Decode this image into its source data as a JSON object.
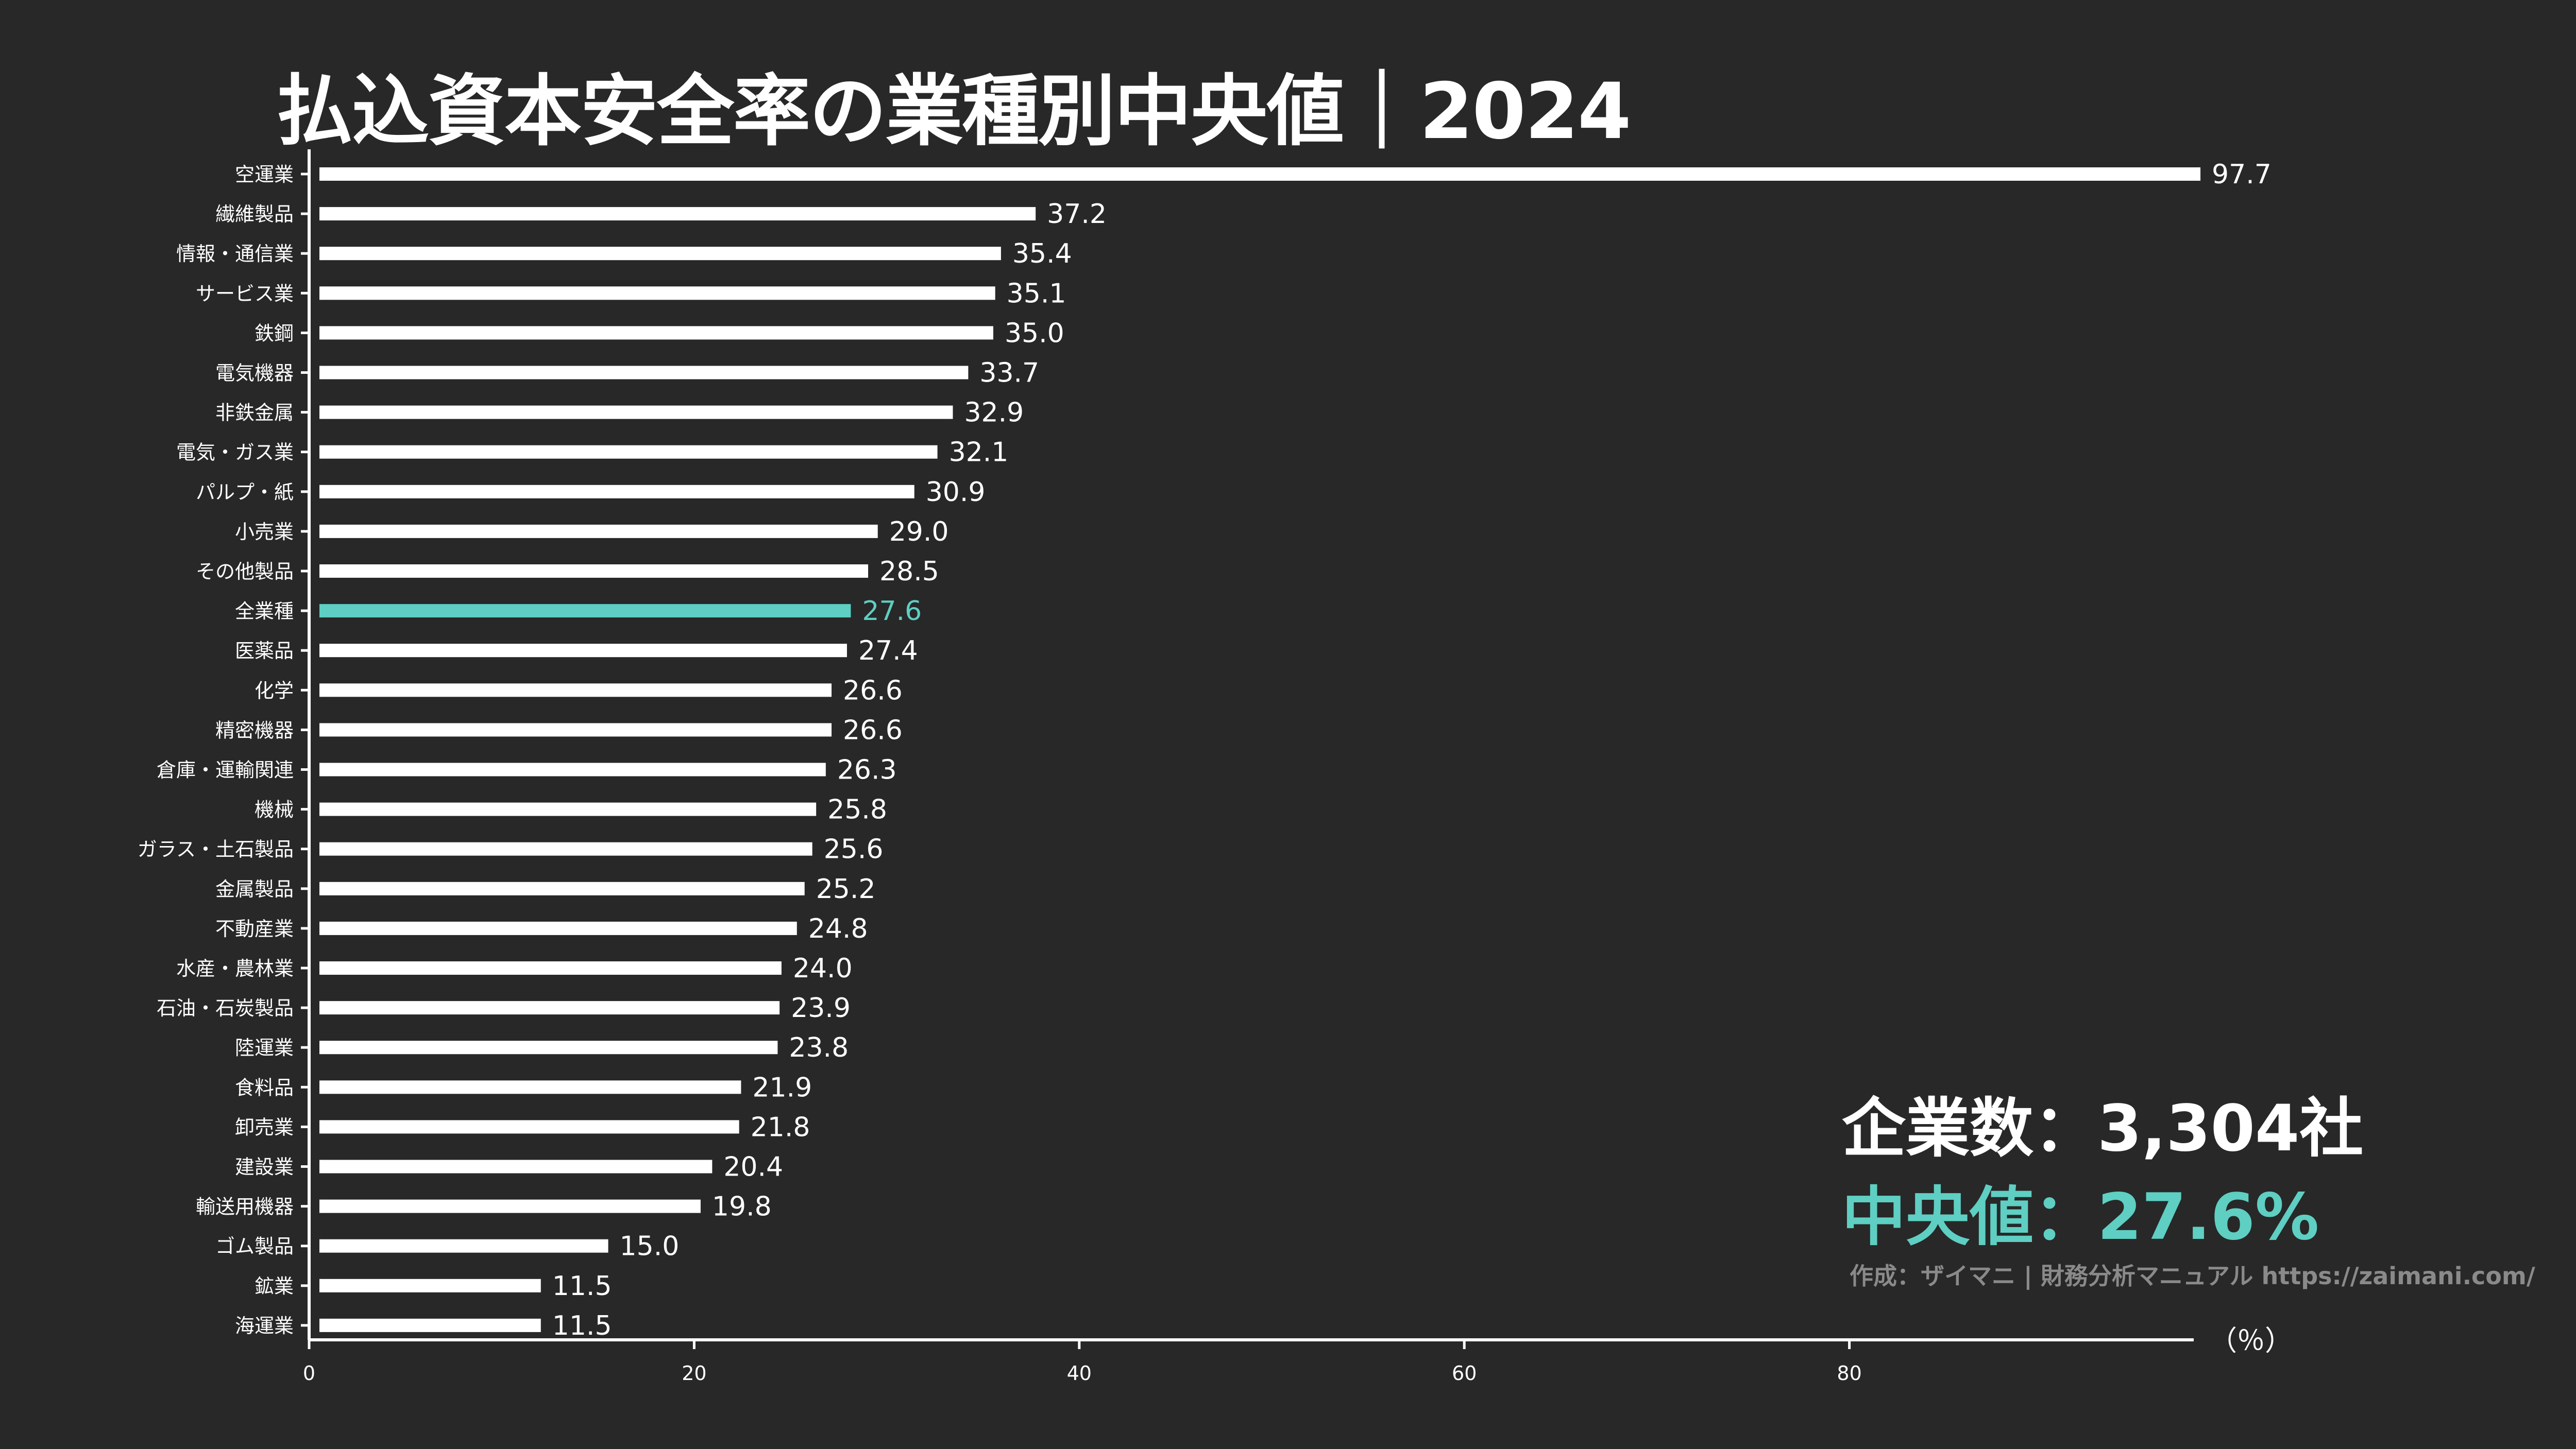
{
  "chart_data": {
    "type": "bar",
    "orientation": "horizontal",
    "title": "払込資本安全率の業種別中央値｜2024",
    "xlabel": "（％）",
    "ylabel": "",
    "xlim": [
      0,
      98
    ],
    "xticks": [
      0,
      20,
      40,
      60,
      80
    ],
    "grid": false,
    "highlight_category": "全業種",
    "colors": {
      "background": "#282828",
      "bar": "#ffffff",
      "highlight": "#5ecfc2",
      "axis": "#ffffff"
    },
    "categories": [
      "空運業",
      "繊維製品",
      "情報・通信業",
      "サービス業",
      "鉄鋼",
      "電気機器",
      "非鉄金属",
      "電気・ガス業",
      "パルプ・紙",
      "小売業",
      "その他製品",
      "全業種",
      "医薬品",
      "化学",
      "精密機器",
      "倉庫・運輸関連",
      "機械",
      "ガラス・土石製品",
      "金属製品",
      "不動産業",
      "水産・農林業",
      "石油・石炭製品",
      "陸運業",
      "食料品",
      "卸売業",
      "建設業",
      "輸送用機器",
      "ゴム製品",
      "鉱業",
      "海運業"
    ],
    "values": [
      97.7,
      37.2,
      35.4,
      35.1,
      35.0,
      33.7,
      32.9,
      32.1,
      30.9,
      29.0,
      28.5,
      27.6,
      27.4,
      26.6,
      26.6,
      26.3,
      25.8,
      25.6,
      25.2,
      24.8,
      24.0,
      23.9,
      23.8,
      21.9,
      21.8,
      20.4,
      19.8,
      15.0,
      11.5,
      11.5
    ],
    "value_labels": [
      "97.7",
      "37.2",
      "35.4",
      "35.1",
      "35.0",
      "33.7",
      "32.9",
      "32.1",
      "30.9",
      "29.0",
      "28.5",
      "27.6",
      "27.4",
      "26.6",
      "26.6",
      "26.3",
      "25.8",
      "25.6",
      "25.2",
      "24.8",
      "24.0",
      "23.9",
      "23.8",
      "21.9",
      "21.8",
      "20.4",
      "19.8",
      "15.0",
      "11.5",
      "11.5"
    ]
  },
  "stats": {
    "company_count": "企業数：3,304社",
    "median": "中央値：27.6%"
  },
  "credit": "作成：ザイマニ | 財務分析マニュアル https://zaimani.com/"
}
